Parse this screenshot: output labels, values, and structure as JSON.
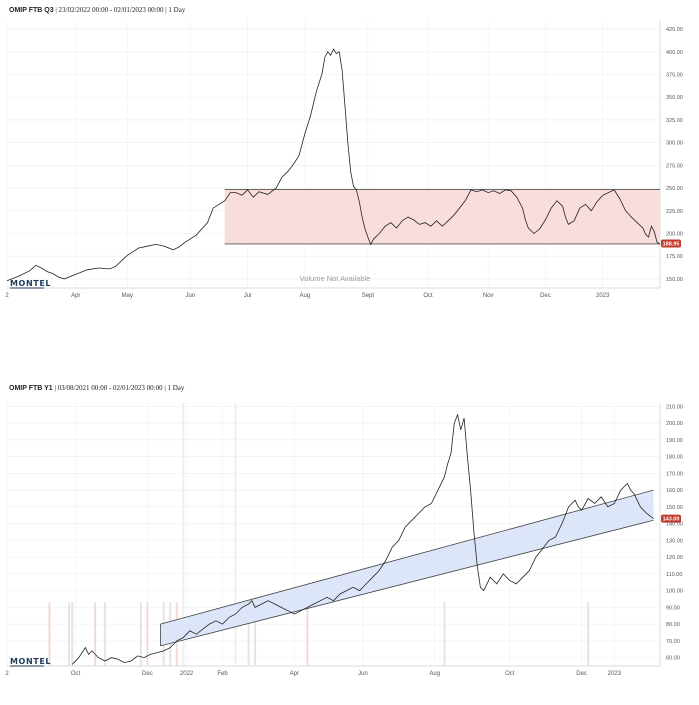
{
  "chart_data": [
    {
      "type": "line",
      "title": "OMIP FTB Q3",
      "subtitle": "23/02/2022 00:00 - 02/01/2023 00:00 | 1 Day",
      "xlabel": "",
      "ylabel": "",
      "ylim": [
        140,
        435
      ],
      "x_ticks": [
        "2",
        "Apr",
        "May",
        "Jun",
        "Jul",
        "Aug",
        "Sept",
        "Oct",
        "Nov",
        "Dec",
        "2023"
      ],
      "y_ticks": [
        "425.00",
        "400.00",
        "375.00",
        "350.00",
        "325.00",
        "300.00",
        "275.00",
        "250.00",
        "225.00",
        "200.00",
        "175.00",
        "150.00"
      ],
      "last_price": "188.95",
      "note": "Volume Not Available",
      "logo": "MONTEL",
      "grid": true,
      "series": [
        {
          "points": [
            [
              0.0,
              148
            ],
            [
              0.02,
              153
            ],
            [
              0.04,
              159
            ],
            [
              0.05,
              165
            ],
            [
              0.06,
              162
            ],
            [
              0.07,
              158
            ],
            [
              0.08,
              156
            ],
            [
              0.09,
              152
            ],
            [
              0.1,
              150
            ],
            [
              0.12,
              155
            ],
            [
              0.14,
              160
            ],
            [
              0.16,
              162
            ],
            [
              0.18,
              161
            ],
            [
              0.19,
              164
            ],
            [
              0.2,
              170
            ],
            [
              0.21,
              176
            ],
            [
              0.22,
              180
            ],
            [
              0.23,
              184
            ],
            [
              0.245,
              186
            ],
            [
              0.26,
              188
            ],
            [
              0.275,
              186
            ],
            [
              0.29,
              182
            ],
            [
              0.3,
              185
            ],
            [
              0.31,
              190
            ],
            [
              0.33,
              198
            ],
            [
              0.35,
              212
            ],
            [
              0.36,
              228
            ],
            [
              0.37,
              232
            ],
            [
              0.38,
              236
            ],
            [
              0.39,
              245
            ],
            [
              0.4,
              245
            ],
            [
              0.41,
              242
            ],
            [
              0.42,
              248
            ],
            [
              0.43,
              240
            ],
            [
              0.44,
              246
            ],
            [
              0.455,
              243
            ],
            [
              0.47,
              250
            ],
            [
              0.48,
              262
            ],
            [
              0.49,
              268
            ],
            [
              0.5,
              276
            ],
            [
              0.51,
              286
            ],
            [
              0.52,
              310
            ],
            [
              0.53,
              330
            ],
            [
              0.54,
              356
            ],
            [
              0.55,
              376
            ],
            [
              0.555,
              394
            ],
            [
              0.56,
              400
            ],
            [
              0.565,
              396
            ],
            [
              0.57,
              403
            ],
            [
              0.575,
              398
            ],
            [
              0.58,
              400
            ],
            [
              0.585,
              380
            ],
            [
              0.59,
              340
            ],
            [
              0.595,
              300
            ],
            [
              0.6,
              268
            ],
            [
              0.605,
              252
            ],
            [
              0.61,
              248
            ],
            [
              0.615,
              235
            ],
            [
              0.62,
              218
            ],
            [
              0.625,
              205
            ],
            [
              0.63,
              196
            ],
            [
              0.635,
              188
            ],
            [
              0.64,
              194
            ],
            [
              0.65,
              200
            ],
            [
              0.66,
              208
            ],
            [
              0.67,
              212
            ],
            [
              0.68,
              206
            ],
            [
              0.69,
              214
            ],
            [
              0.7,
              218
            ],
            [
              0.71,
              215
            ],
            [
              0.72,
              210
            ],
            [
              0.73,
              212
            ],
            [
              0.74,
              208
            ],
            [
              0.75,
              214
            ],
            [
              0.76,
              208
            ],
            [
              0.77,
              214
            ],
            [
              0.78,
              220
            ],
            [
              0.79,
              228
            ],
            [
              0.8,
              236
            ],
            [
              0.81,
              248
            ],
            [
              0.82,
              246
            ],
            [
              0.83,
              248
            ],
            [
              0.84,
              245
            ],
            [
              0.85,
              247
            ],
            [
              0.86,
              244
            ],
            [
              0.87,
              248
            ],
            [
              0.88,
              247
            ],
            [
              0.89,
              240
            ],
            [
              0.9,
              228
            ],
            [
              0.905,
              215
            ],
            [
              0.91,
              206
            ],
            [
              0.92,
              200
            ],
            [
              0.93,
              205
            ],
            [
              0.94,
              215
            ],
            [
              0.95,
              228
            ],
            [
              0.96,
              236
            ],
            [
              0.97,
              230
            ],
            [
              0.975,
              218
            ],
            [
              0.98,
              210
            ],
            [
              0.99,
              214
            ],
            [
              1.0,
              228
            ],
            [
              1.01,
              232
            ],
            [
              1.02,
              225
            ],
            [
              1.03,
              235
            ],
            [
              1.04,
              242
            ],
            [
              1.05,
              245
            ],
            [
              1.06,
              248
            ],
            [
              1.07,
              238
            ],
            [
              1.08,
              225
            ],
            [
              1.09,
              218
            ],
            [
              1.1,
              212
            ],
            [
              1.11,
              206
            ],
            [
              1.115,
              199
            ],
            [
              1.12,
              196
            ],
            [
              1.125,
              208
            ],
            [
              1.13,
              202
            ],
            [
              1.135,
              190
            ],
            [
              1.14,
              188.95
            ]
          ],
          "x_ticks_pos": [
            0.0,
            0.12,
            0.21,
            0.32,
            0.42,
            0.52,
            0.63,
            0.735,
            0.84,
            0.94,
            1.04
          ]
        }
      ],
      "channel": {
        "upper": 248.5,
        "lower": 188.5,
        "x_start": 0.38,
        "x_end": 1.14,
        "fill": "#f9dcdc",
        "line": "#555555"
      }
    },
    {
      "type": "line",
      "title": "OMIP FTB Y1",
      "subtitle": "03/08/2021 00:00 - 02/01/2023 00:00 | 1 Day",
      "xlabel": "",
      "ylabel": "",
      "ylim": [
        55,
        212
      ],
      "x_ticks": [
        "2",
        "Oct",
        "Dec",
        "2022",
        "Feb",
        "Apr",
        "Jun",
        "Aug",
        "Oct",
        "Dec",
        "2023"
      ],
      "y_ticks": [
        "210.00",
        "200.00",
        "190.00",
        "180.00",
        "170.00",
        "160.00",
        "150.00",
        "140.00",
        "130.00",
        "120.00",
        "110.00",
        "100.00",
        "90.00",
        "80.00",
        "70.00",
        "60.00"
      ],
      "last_price": "143.00",
      "logo": "MONTEL",
      "grid": true,
      "series": [
        {
          "points": [
            [
              0.1,
              56
            ],
            [
              0.11,
              60
            ],
            [
              0.12,
              66
            ],
            [
              0.125,
              62
            ],
            [
              0.13,
              64
            ],
            [
              0.14,
              60
            ],
            [
              0.15,
              58
            ],
            [
              0.16,
              60
            ],
            [
              0.17,
              59
            ],
            [
              0.18,
              57
            ],
            [
              0.19,
              58
            ],
            [
              0.2,
              61
            ],
            [
              0.21,
              60
            ],
            [
              0.22,
              62
            ],
            [
              0.23,
              63
            ],
            [
              0.24,
              64
            ],
            [
              0.25,
              66
            ],
            [
              0.26,
              70
            ],
            [
              0.27,
              72
            ],
            [
              0.28,
              76
            ],
            [
              0.29,
              74
            ],
            [
              0.3,
              77
            ],
            [
              0.31,
              80
            ],
            [
              0.32,
              82
            ],
            [
              0.33,
              80
            ],
            [
              0.34,
              84
            ],
            [
              0.35,
              86
            ],
            [
              0.36,
              90
            ],
            [
              0.37,
              92
            ],
            [
              0.375,
              94
            ],
            [
              0.38,
              90
            ],
            [
              0.39,
              92
            ],
            [
              0.4,
              94
            ],
            [
              0.41,
              92
            ],
            [
              0.42,
              90
            ],
            [
              0.43,
              88
            ],
            [
              0.44,
              86
            ],
            [
              0.45,
              88
            ],
            [
              0.46,
              90
            ],
            [
              0.47,
              92
            ],
            [
              0.48,
              94
            ],
            [
              0.49,
              96
            ],
            [
              0.5,
              94
            ],
            [
              0.51,
              98
            ],
            [
              0.52,
              100
            ],
            [
              0.53,
              102
            ],
            [
              0.54,
              100
            ],
            [
              0.55,
              104
            ],
            [
              0.56,
              108
            ],
            [
              0.57,
              112
            ],
            [
              0.58,
              118
            ],
            [
              0.59,
              126
            ],
            [
              0.6,
              130
            ],
            [
              0.61,
              138
            ],
            [
              0.62,
              142
            ],
            [
              0.63,
              146
            ],
            [
              0.64,
              150
            ],
            [
              0.65,
              152
            ],
            [
              0.66,
              160
            ],
            [
              0.67,
              168
            ],
            [
              0.675,
              176
            ],
            [
              0.68,
              182
            ],
            [
              0.685,
              200
            ],
            [
              0.69,
              205
            ],
            [
              0.695,
              196
            ],
            [
              0.7,
              203
            ],
            [
              0.705,
              180
            ],
            [
              0.71,
              160
            ],
            [
              0.715,
              135
            ],
            [
              0.72,
              115
            ],
            [
              0.725,
              102
            ],
            [
              0.73,
              100
            ],
            [
              0.74,
              108
            ],
            [
              0.75,
              104
            ],
            [
              0.76,
              110
            ],
            [
              0.77,
              106
            ],
            [
              0.78,
              104
            ],
            [
              0.79,
              108
            ],
            [
              0.8,
              112
            ],
            [
              0.81,
              120
            ],
            [
              0.82,
              125
            ],
            [
              0.83,
              130
            ],
            [
              0.84,
              132
            ],
            [
              0.85,
              140
            ],
            [
              0.86,
              150
            ],
            [
              0.87,
              154
            ],
            [
              0.875,
              150
            ],
            [
              0.88,
              148
            ],
            [
              0.89,
              155
            ],
            [
              0.9,
              152
            ],
            [
              0.91,
              156
            ],
            [
              0.92,
              150
            ],
            [
              0.93,
              152
            ],
            [
              0.94,
              160
            ],
            [
              0.95,
              164
            ],
            [
              0.955,
              160
            ],
            [
              0.96,
              158
            ],
            [
              0.97,
              150
            ],
            [
              0.98,
              146
            ],
            [
              0.99,
              143
            ]
          ],
          "x_ticks_pos": [
            0.0,
            0.105,
            0.215,
            0.275,
            0.33,
            0.44,
            0.545,
            0.655,
            0.77,
            0.88,
            0.93
          ]
        }
      ],
      "channel": {
        "upper_start": 80,
        "upper_end": 160,
        "lower_start": 67,
        "lower_end": 142,
        "x_start": 0.235,
        "x_end": 0.99,
        "fill": "#dde6f9",
        "line": "#444444"
      }
    }
  ],
  "ui": {
    "panel1": {
      "title_bold": "OMIP FTB Q3",
      "title_sub": " | 23/02/2022 00:00 - 02/01/2023 00:00 | 1 Day"
    },
    "panel2": {
      "title_bold": "OMIP FTB Y1",
      "title_sub": " | 03/08/2021 00:00 - 02/01/2023 00:00 | 1 Day"
    }
  }
}
